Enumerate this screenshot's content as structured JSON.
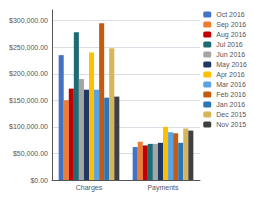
{
  "chart_data": {
    "type": "bar",
    "categories": [
      "Charges",
      "Payments"
    ],
    "series": [
      {
        "name": "Oct 2016",
        "color": "#4472C4",
        "values": [
          235000,
          62000
        ]
      },
      {
        "name": "Sep 2016",
        "color": "#ED7D31",
        "values": [
          150000,
          72000
        ]
      },
      {
        "name": "Aug 2016",
        "color": "#C00000",
        "values": [
          172000,
          65000
        ]
      },
      {
        "name": "Jul 2016",
        "color": "#1F6B75",
        "values": [
          278000,
          68000
        ]
      },
      {
        "name": "Jun 2016",
        "color": "#A5A5A5",
        "values": [
          190000,
          68000
        ]
      },
      {
        "name": "May 2016",
        "color": "#1F3864",
        "values": [
          170000,
          70000
        ]
      },
      {
        "name": "Apr 2016",
        "color": "#FFC000",
        "values": [
          240000,
          100000
        ]
      },
      {
        "name": "Mar 2016",
        "color": "#5BA3E0",
        "values": [
          170000,
          90000
        ]
      },
      {
        "name": "Feb 2016",
        "color": "#C55A11",
        "values": [
          295000,
          88000
        ]
      },
      {
        "name": "Jan 2016",
        "color": "#2E75B6",
        "values": [
          155000,
          70000
        ]
      },
      {
        "name": "Dec 2015",
        "color": "#D6B656",
        "values": [
          248000,
          97000
        ]
      },
      {
        "name": "Nov 2015",
        "color": "#404040",
        "values": [
          157000,
          93000
        ]
      }
    ],
    "ylim": [
      0,
      320000
    ],
    "yticks": [
      {
        "value": 0,
        "label": "$0.00"
      },
      {
        "value": 50000,
        "label": "$50,000.00"
      },
      {
        "value": 100000,
        "label": "$100,000.00"
      },
      {
        "value": 150000,
        "label": "$150,000.00"
      },
      {
        "value": 200000,
        "label": "$200,000.00"
      },
      {
        "value": 250000,
        "label": "$250,000.00"
      },
      {
        "value": 300000,
        "label": "$300,000.00"
      }
    ],
    "grid": true,
    "legend": "upper right"
  }
}
